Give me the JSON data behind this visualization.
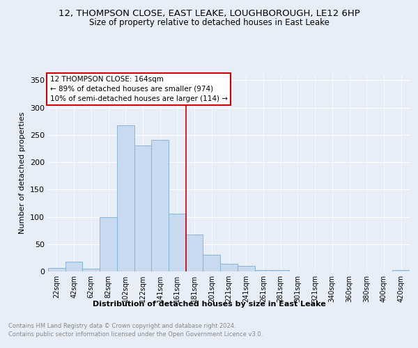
{
  "title": "12, THOMPSON CLOSE, EAST LEAKE, LOUGHBOROUGH, LE12 6HP",
  "subtitle": "Size of property relative to detached houses in East Leake",
  "xlabel": "Distribution of detached houses by size in East Leake",
  "ylabel": "Number of detached properties",
  "bins": [
    "22sqm",
    "42sqm",
    "62sqm",
    "82sqm",
    "102sqm",
    "122sqm",
    "141sqm",
    "161sqm",
    "181sqm",
    "201sqm",
    "221sqm",
    "241sqm",
    "261sqm",
    "281sqm",
    "301sqm",
    "321sqm",
    "340sqm",
    "360sqm",
    "380sqm",
    "400sqm",
    "420sqm"
  ],
  "values": [
    7,
    18,
    5,
    99,
    267,
    231,
    241,
    106,
    67,
    30,
    14,
    10,
    3,
    3,
    0,
    0,
    0,
    0,
    0,
    0,
    2
  ],
  "bar_color": "#c8d9f0",
  "bar_edge_color": "#7aafd4",
  "vline_color": "#cc0000",
  "vline_pos": 7.5,
  "annotation_text": "12 THOMPSON CLOSE: 164sqm\n← 89% of detached houses are smaller (974)\n10% of semi-detached houses are larger (114) →",
  "annotation_box_color": "#ffffff",
  "annotation_box_edge": "#cc0000",
  "footer1": "Contains HM Land Registry data © Crown copyright and database right 2024.",
  "footer2": "Contains public sector information licensed under the Open Government Licence v3.0.",
  "background_color": "#e8eef8",
  "plot_background": "#e8eef8",
  "ylim": [
    0,
    360
  ],
  "yticks": [
    0,
    50,
    100,
    150,
    200,
    250,
    300,
    350
  ]
}
